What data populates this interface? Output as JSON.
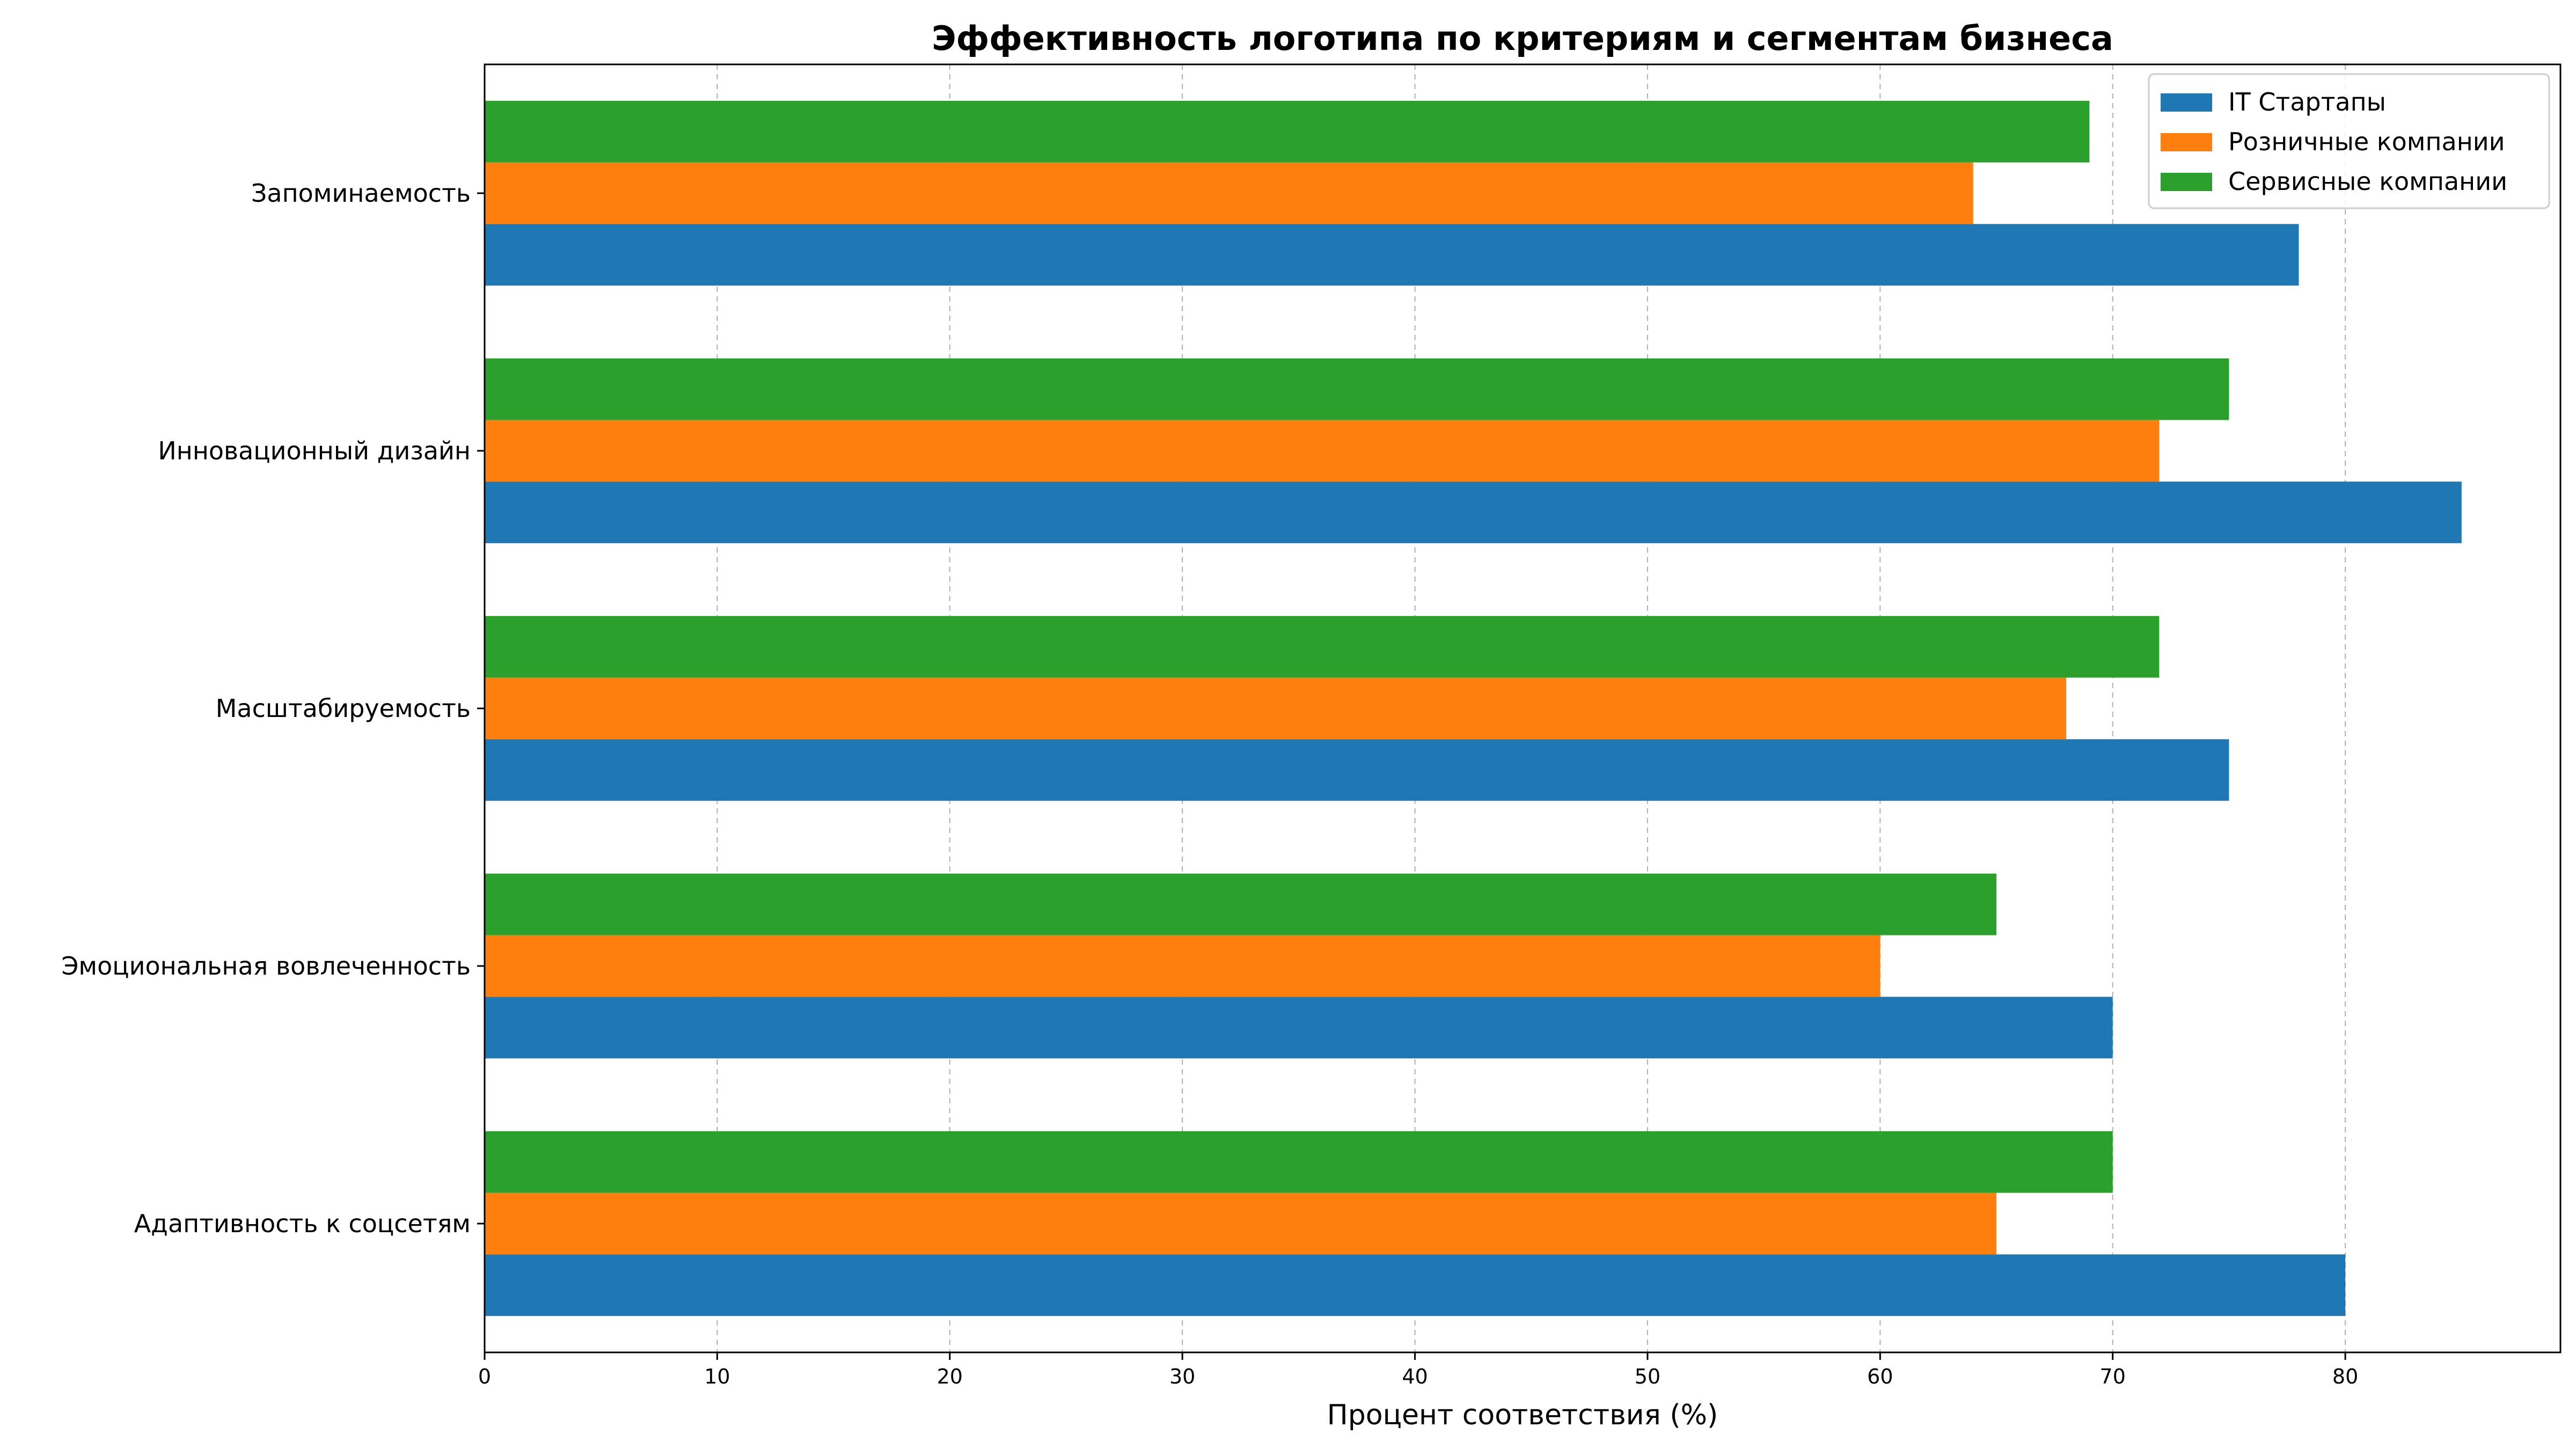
{
  "chart_data": {
    "type": "bar",
    "orientation": "horizontal",
    "title": "Эффективность логотипа по критериям и сегментам бизнеса",
    "xlabel": "Процент соответствия (%)",
    "ylabel": "",
    "categories": [
      "Запоминаемость",
      "Инновационный дизайн",
      "Масштабируемость",
      "Эмоциональная вовлеченность",
      "Адаптивность к соцсетям"
    ],
    "series": [
      {
        "name": "IT Стартапы",
        "color": "#1f77b4",
        "values": [
          78,
          85,
          75,
          70,
          80
        ]
      },
      {
        "name": "Розничные компании",
        "color": "#ff7f0e",
        "values": [
          64,
          72,
          68,
          60,
          65
        ]
      },
      {
        "name": "Сервисные компании",
        "color": "#2ca02c",
        "values": [
          69,
          75,
          72,
          65,
          70
        ]
      }
    ],
    "xlim": [
      0,
      89.25
    ],
    "xticks": [
      "0",
      "10",
      "20",
      "30",
      "40",
      "50",
      "60",
      "70",
      "80"
    ],
    "grid": "vertical dashed",
    "legend": "top-right"
  }
}
